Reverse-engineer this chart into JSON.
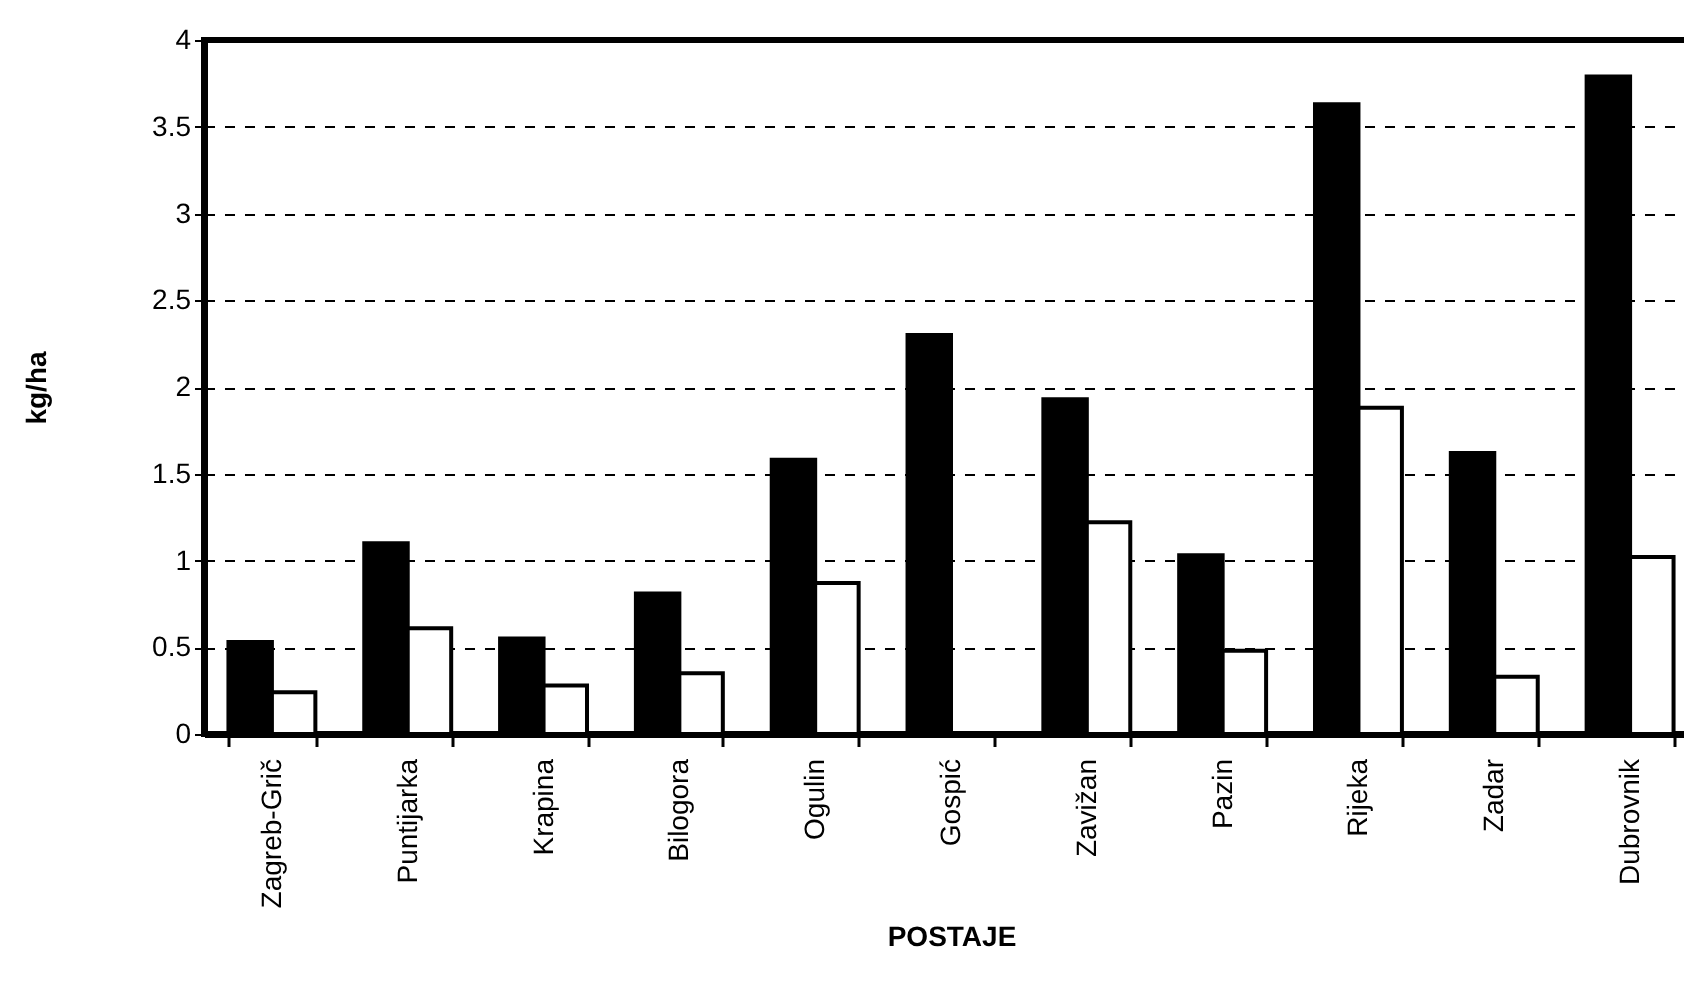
{
  "chart_data": {
    "type": "bar",
    "xlabel": "POSTAJE",
    "ylabel": "kg/ha",
    "categories": [
      "Zagreb-Grič",
      "Puntijarka",
      "Krapina",
      "Bilogora",
      "Ogulin",
      "Gospić",
      "Zavižan",
      "Pazin",
      "Rijeka",
      "Zadar",
      "Dubrovnik"
    ],
    "series": [
      {
        "color": "#000000",
        "values": [
          0.53,
          1.1,
          0.55,
          0.81,
          1.58,
          2.3,
          1.93,
          1.03,
          3.63,
          1.62,
          3.79
        ]
      },
      {
        "color": "#ffffff",
        "values": [
          0.24,
          0.61,
          0.28,
          0.35,
          0.87,
          null,
          1.22,
          0.48,
          1.88,
          0.33,
          1.02
        ]
      }
    ],
    "ylim": [
      0,
      4
    ],
    "yticks": [
      0,
      0.5,
      1,
      1.5,
      2,
      2.5,
      3,
      3.5,
      4
    ],
    "grid": "y"
  }
}
